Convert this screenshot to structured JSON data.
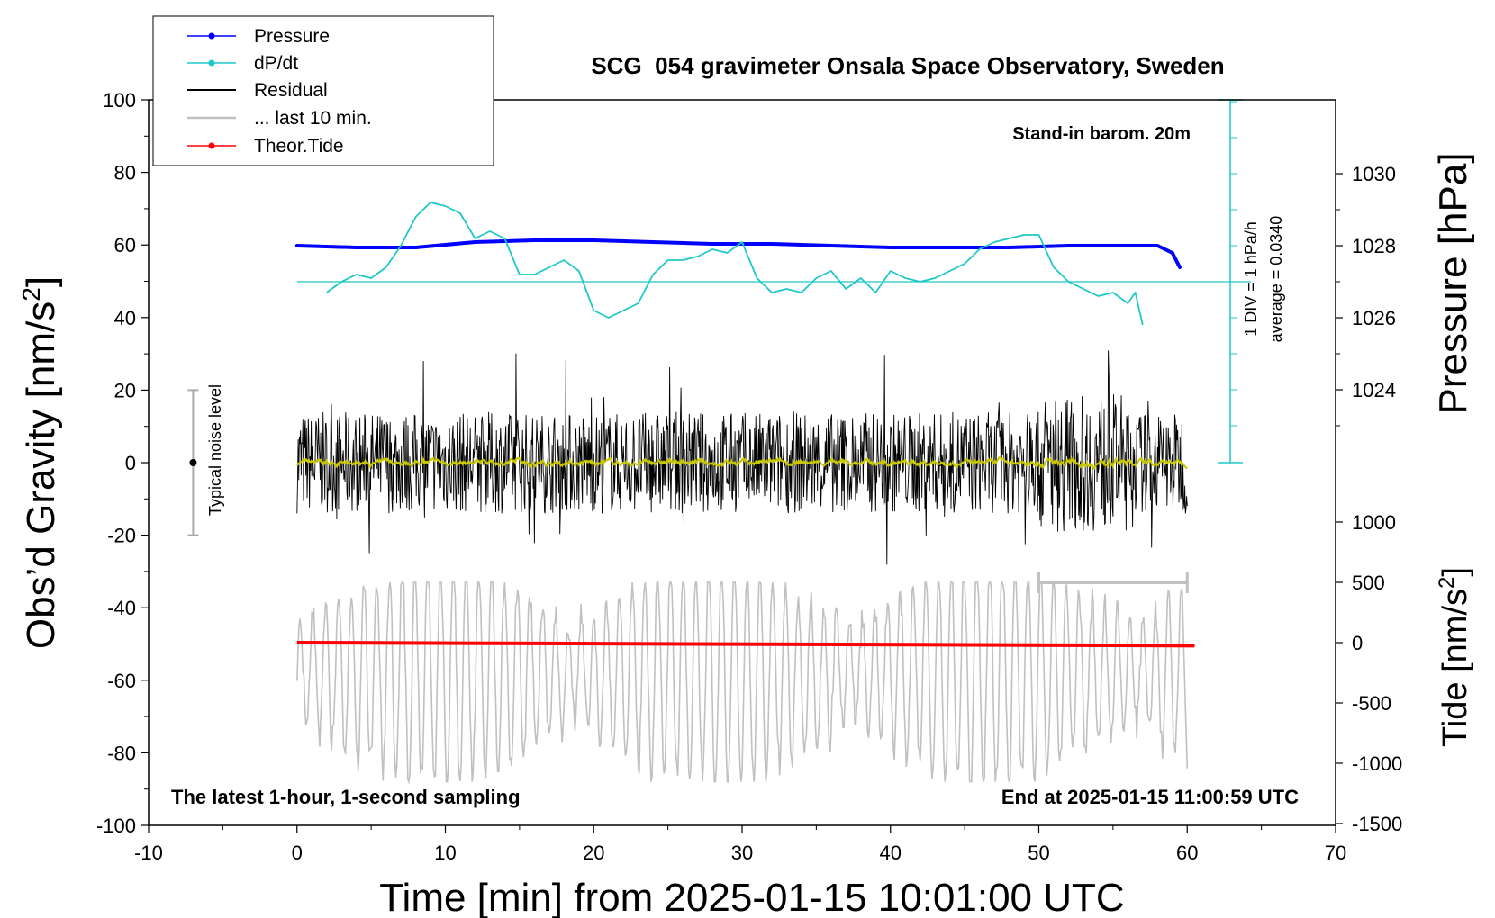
{
  "colors": {
    "pressure": "#0000ff",
    "dpdt": "#1ec8c8",
    "residual": "#000000",
    "smooth": "#c8c800",
    "last10": "#c0c0c0",
    "tide": "#ff0000",
    "noise": "#aaaaaa"
  },
  "chart_data": {
    "type": "line",
    "title": "SCG_054 gravimeter Onsala Space Observatory, Sweden",
    "xlabel": "Time [min] from 2025-01-15 10:01:00 UTC",
    "ylabel_left_main": "Obs’d Gravity [nm/s",
    "ylabel_left_sup": "2",
    "ylabel_left_close": "]",
    "ylabel_right_pressure": "Pressure [hPa]",
    "ylabel_right_tide_main": "Tide [nm/s",
    "ylabel_right_tide_sup": "2",
    "ylabel_right_tide_close": "]",
    "xlim": [
      -10,
      70
    ],
    "ylim_gravity": [
      -100,
      100
    ],
    "x_ticks": [
      "-10",
      "0",
      "10",
      "20",
      "30",
      "40",
      "50",
      "60",
      "70"
    ],
    "y_ticks_gravity": [
      "100",
      "80",
      "60",
      "40",
      "20",
      "0",
      "-20",
      "-40",
      "-60",
      "-80",
      "-100"
    ],
    "pressure_ticks": [
      "1030",
      "1028",
      "1026",
      "1024"
    ],
    "tide_ticks": [
      "1000",
      "500",
      "0",
      "-500",
      "-1000",
      "-1500"
    ],
    "legend": [
      "Pressure",
      "dP/dt",
      "Residual",
      "... last 10 min.",
      "Theor.Tide"
    ],
    "annotations": {
      "barometer": "Stand-in barom. 20m",
      "div": "1 DIV = 1 hPa/h",
      "average": "average = 0.0340",
      "noise": "Typical noise level",
      "bottom_left": "The latest 1-hour, 1-second sampling",
      "bottom_right": "End at 2025-01-15 11:00:59 UTC"
    },
    "series": [
      {
        "name": "Pressure",
        "unit": "hPa",
        "x": [
          0,
          4,
          8,
          12,
          16,
          20,
          24,
          28,
          32,
          36,
          40,
          44,
          48,
          52,
          54,
          56,
          57,
          58,
          59,
          59.5
        ],
        "values": [
          1028.0,
          1027.95,
          1027.95,
          1028.1,
          1028.15,
          1028.15,
          1028.1,
          1028.05,
          1028.05,
          1028.0,
          1027.95,
          1027.95,
          1027.95,
          1028.0,
          1028.0,
          1028.0,
          1028.0,
          1028.0,
          1027.8,
          1027.4
        ]
      },
      {
        "name": "dP/dt",
        "unit": "hPa/h (rel.)",
        "x": [
          2,
          3,
          4,
          5,
          6,
          7,
          8,
          9,
          10,
          11,
          12,
          13,
          14,
          15,
          16,
          17,
          18,
          19,
          20,
          21,
          22,
          23,
          24,
          25,
          26,
          27,
          28,
          29,
          30,
          31,
          32,
          33,
          34,
          35,
          36,
          37,
          38,
          39,
          40,
          41,
          42,
          43,
          44,
          45,
          46,
          47,
          48,
          49,
          50,
          51,
          52,
          53,
          54,
          55,
          56,
          56.5,
          57
        ],
        "values": [
          -0.3,
          0.0,
          0.2,
          0.1,
          0.4,
          1.0,
          1.8,
          2.2,
          2.1,
          1.9,
          1.2,
          1.4,
          1.2,
          0.2,
          0.2,
          0.4,
          0.6,
          0.3,
          -0.8,
          -1.0,
          -0.8,
          -0.6,
          0.2,
          0.6,
          0.6,
          0.7,
          0.9,
          0.8,
          1.1,
          0.1,
          -0.3,
          -0.2,
          -0.3,
          0.1,
          0.3,
          -0.2,
          0.1,
          -0.3,
          0.3,
          0.1,
          0.0,
          0.1,
          0.3,
          0.5,
          0.9,
          1.1,
          1.2,
          1.3,
          1.3,
          0.4,
          0.0,
          -0.2,
          -0.4,
          -0.3,
          -0.6,
          -0.3,
          -1.2
        ]
      },
      {
        "name": "Residual",
        "unit": "nm/s2",
        "x_range": [
          0,
          60
        ],
        "amplitude": "about -30 to 35"
      },
      {
        "name": "... last 10 min.",
        "scale_bar_minutes": [
          50,
          60
        ]
      },
      {
        "name": "Theor.Tide",
        "unit": "nm/s2",
        "x": [
          0,
          60.5
        ],
        "values": [
          0,
          -25
        ]
      }
    ]
  }
}
